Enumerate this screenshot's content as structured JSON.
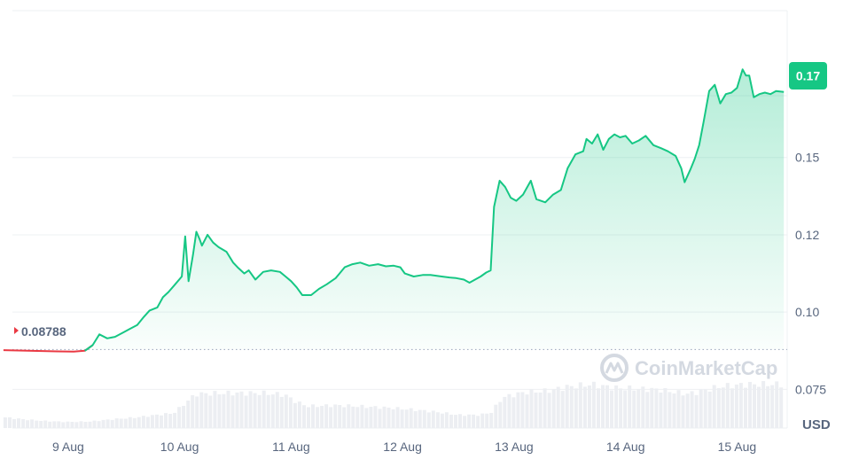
{
  "chart_data": {
    "type": "area",
    "unit": "USD",
    "watermark": "CoinMarketCap",
    "start_price_label": "0.08788",
    "current_price_label": "0.17",
    "start_price": 0.08788,
    "colors": {
      "up": "#16c784",
      "down": "#ea3943",
      "tag_bg": "#16c784"
    },
    "ylim": [
      0.0625,
      0.1975
    ],
    "y_ticks": [
      {
        "value": 0.17,
        "label": "0.17"
      },
      {
        "value": 0.15,
        "label": "0.15"
      },
      {
        "value": 0.125,
        "label": "0.12"
      },
      {
        "value": 0.1,
        "label": "0.10"
      },
      {
        "value": 0.075,
        "label": "0.075"
      }
    ],
    "xlim": [
      -0.5,
      6.45
    ],
    "x_ticks": [
      {
        "value": 0,
        "label": "9 Aug"
      },
      {
        "value": 1,
        "label": "10 Aug"
      },
      {
        "value": 2,
        "label": "11 Aug"
      },
      {
        "value": 3,
        "label": "12 Aug"
      },
      {
        "value": 4,
        "label": "13 Aug"
      },
      {
        "value": 5,
        "label": "14 Aug"
      },
      {
        "value": 6,
        "label": "15 Aug"
      }
    ],
    "price_series": [
      [
        -0.58,
        0.0877
      ],
      [
        -0.1,
        0.0873
      ],
      [
        0.05,
        0.0872
      ],
      [
        0.15,
        0.0875
      ],
      [
        0.22,
        0.0893
      ],
      [
        0.28,
        0.0928
      ],
      [
        0.35,
        0.0915
      ],
      [
        0.42,
        0.092
      ],
      [
        0.5,
        0.0935
      ],
      [
        0.55,
        0.0945
      ],
      [
        0.62,
        0.0958
      ],
      [
        0.68,
        0.0985
      ],
      [
        0.73,
        0.1005
      ],
      [
        0.8,
        0.1015
      ],
      [
        0.85,
        0.1048
      ],
      [
        0.9,
        0.1065
      ],
      [
        0.96,
        0.109
      ],
      [
        1.02,
        0.1115
      ],
      [
        1.05,
        0.1245
      ],
      [
        1.08,
        0.11
      ],
      [
        1.12,
        0.1185
      ],
      [
        1.15,
        0.126
      ],
      [
        1.18,
        0.1235
      ],
      [
        1.2,
        0.1215
      ],
      [
        1.25,
        0.125
      ],
      [
        1.3,
        0.1225
      ],
      [
        1.35,
        0.121
      ],
      [
        1.42,
        0.1195
      ],
      [
        1.48,
        0.116
      ],
      [
        1.52,
        0.1145
      ],
      [
        1.58,
        0.1125
      ],
      [
        1.62,
        0.1135
      ],
      [
        1.68,
        0.1105
      ],
      [
        1.75,
        0.113
      ],
      [
        1.82,
        0.1135
      ],
      [
        1.9,
        0.113
      ],
      [
        1.95,
        0.1115
      ],
      [
        2.0,
        0.11
      ],
      [
        2.05,
        0.108
      ],
      [
        2.1,
        0.1055
      ],
      [
        2.18,
        0.1055
      ],
      [
        2.25,
        0.1075
      ],
      [
        2.32,
        0.109
      ],
      [
        2.4,
        0.111
      ],
      [
        2.48,
        0.1145
      ],
      [
        2.55,
        0.1155
      ],
      [
        2.62,
        0.116
      ],
      [
        2.7,
        0.115
      ],
      [
        2.78,
        0.1155
      ],
      [
        2.85,
        0.1148
      ],
      [
        2.92,
        0.115
      ],
      [
        2.98,
        0.1145
      ],
      [
        3.02,
        0.1125
      ],
      [
        3.1,
        0.1115
      ],
      [
        3.18,
        0.112
      ],
      [
        3.25,
        0.112
      ],
      [
        3.35,
        0.1115
      ],
      [
        3.42,
        0.1112
      ],
      [
        3.48,
        0.111
      ],
      [
        3.55,
        0.1105
      ],
      [
        3.6,
        0.1095
      ],
      [
        3.65,
        0.1105
      ],
      [
        3.7,
        0.1115
      ],
      [
        3.75,
        0.1128
      ],
      [
        3.79,
        0.1135
      ],
      [
        3.82,
        0.134
      ],
      [
        3.87,
        0.1425
      ],
      [
        3.92,
        0.1405
      ],
      [
        3.97,
        0.137
      ],
      [
        4.02,
        0.136
      ],
      [
        4.08,
        0.138
      ],
      [
        4.15,
        0.1425
      ],
      [
        4.2,
        0.1365
      ],
      [
        4.28,
        0.1355
      ],
      [
        4.35,
        0.138
      ],
      [
        4.42,
        0.1395
      ],
      [
        4.48,
        0.1465
      ],
      [
        4.55,
        0.151
      ],
      [
        4.62,
        0.152
      ],
      [
        4.65,
        0.156
      ],
      [
        4.7,
        0.1545
      ],
      [
        4.75,
        0.1575
      ],
      [
        4.8,
        0.1525
      ],
      [
        4.85,
        0.156
      ],
      [
        4.9,
        0.1575
      ],
      [
        4.95,
        0.1565
      ],
      [
        5.0,
        0.157
      ],
      [
        5.06,
        0.1545
      ],
      [
        5.12,
        0.1555
      ],
      [
        5.18,
        0.157
      ],
      [
        5.25,
        0.154
      ],
      [
        5.32,
        0.153
      ],
      [
        5.38,
        0.152
      ],
      [
        5.45,
        0.1505
      ],
      [
        5.5,
        0.1465
      ],
      [
        5.53,
        0.142
      ],
      [
        5.58,
        0.146
      ],
      [
        5.62,
        0.1495
      ],
      [
        5.66,
        0.154
      ],
      [
        5.7,
        0.1615
      ],
      [
        5.75,
        0.1715
      ],
      [
        5.8,
        0.1735
      ],
      [
        5.85,
        0.1675
      ],
      [
        5.9,
        0.1705
      ],
      [
        5.95,
        0.171
      ],
      [
        6.0,
        0.1725
      ],
      [
        6.05,
        0.1785
      ],
      [
        6.08,
        0.1765
      ],
      [
        6.11,
        0.1765
      ],
      [
        6.15,
        0.1695
      ],
      [
        6.2,
        0.1705
      ],
      [
        6.25,
        0.171
      ],
      [
        6.3,
        0.1705
      ],
      [
        6.35,
        0.1715
      ],
      [
        6.42,
        0.1712
      ]
    ],
    "volume_series": [
      [
        -0.58,
        0.25
      ],
      [
        -0.4,
        0.2
      ],
      [
        -0.2,
        0.16
      ],
      [
        0.0,
        0.14
      ],
      [
        0.2,
        0.15
      ],
      [
        0.4,
        0.2
      ],
      [
        0.6,
        0.24
      ],
      [
        0.8,
        0.3
      ],
      [
        0.95,
        0.34
      ],
      [
        1.05,
        0.56
      ],
      [
        1.15,
        0.78
      ],
      [
        1.4,
        0.8
      ],
      [
        1.75,
        0.8
      ],
      [
        1.95,
        0.76
      ],
      [
        2.05,
        0.6
      ],
      [
        2.15,
        0.5
      ],
      [
        2.4,
        0.52
      ],
      [
        2.6,
        0.5
      ],
      [
        2.9,
        0.46
      ],
      [
        3.1,
        0.42
      ],
      [
        3.3,
        0.37
      ],
      [
        3.5,
        0.3
      ],
      [
        3.7,
        0.3
      ],
      [
        3.8,
        0.36
      ],
      [
        3.9,
        0.7
      ],
      [
        4.1,
        0.82
      ],
      [
        4.3,
        0.85
      ],
      [
        4.5,
        0.95
      ],
      [
        4.7,
        1.0
      ],
      [
        4.9,
        0.92
      ],
      [
        5.1,
        0.9
      ],
      [
        5.3,
        0.88
      ],
      [
        5.55,
        0.78
      ],
      [
        5.65,
        0.82
      ],
      [
        5.85,
        0.95
      ],
      [
        6.1,
        1.0
      ],
      [
        6.42,
        1.0
      ]
    ]
  }
}
